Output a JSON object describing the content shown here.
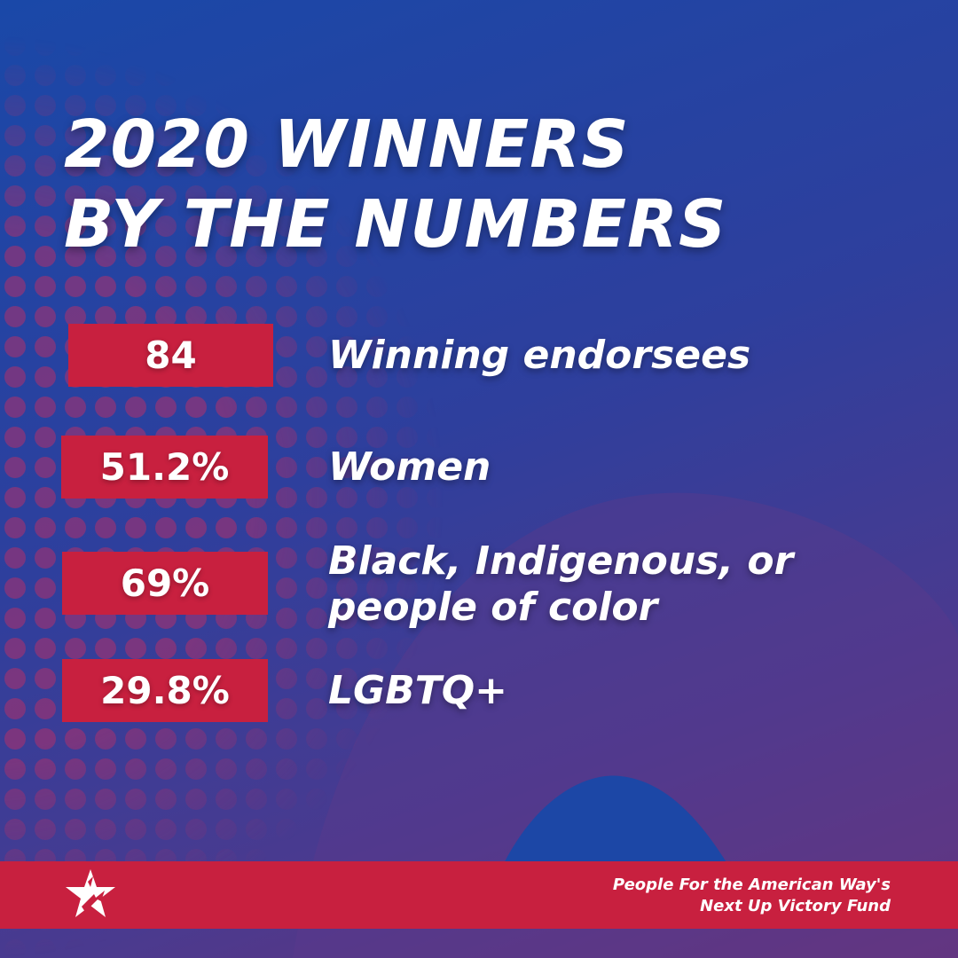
{
  "title": {
    "line1": "2020 WINNERS",
    "line2": "BY THE NUMBERS"
  },
  "stats": [
    {
      "value": "84",
      "label_line1": "Winning endorsees"
    },
    {
      "value": "51.2%",
      "label_line1": "Women"
    },
    {
      "value": "69%",
      "label_line1": "Black, Indigenous, or",
      "label_line2": "people of color"
    },
    {
      "value": "29.8%",
      "label_line1": "LGBTQ+"
    }
  ],
  "footer": {
    "line1": "People For the American Way's",
    "line2": "Next Up Victory Fund",
    "logo_icon": "star-logo-icon"
  },
  "colors": {
    "accent_red": "#c8203f",
    "background_blue": "#1a48a8",
    "background_purple": "#6a3278",
    "text": "#ffffff"
  }
}
